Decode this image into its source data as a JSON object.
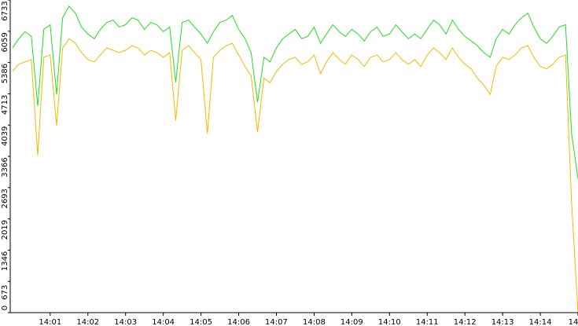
{
  "chart_data": {
    "type": "line",
    "x": [
      840,
      840.17,
      840.33,
      840.5,
      840.67,
      840.83,
      841,
      841.17,
      841.33,
      841.5,
      841.67,
      841.83,
      842,
      842.17,
      842.33,
      842.5,
      842.67,
      842.83,
      843,
      843.17,
      843.33,
      843.5,
      843.67,
      843.83,
      844,
      844.17,
      844.33,
      844.5,
      844.67,
      844.83,
      845,
      845.17,
      845.33,
      845.5,
      845.67,
      845.83,
      846,
      846.17,
      846.33,
      846.5,
      846.67,
      846.83,
      847,
      847.17,
      847.33,
      847.5,
      847.67,
      847.83,
      848,
      848.17,
      848.33,
      848.5,
      848.67,
      848.83,
      849,
      849.17,
      849.33,
      849.5,
      849.67,
      849.83,
      850,
      850.17,
      850.33,
      850.5,
      850.67,
      850.83,
      851,
      851.17,
      851.33,
      851.5,
      851.67,
      851.83,
      852,
      852.17,
      852.33,
      852.5,
      852.67,
      852.83,
      853,
      853.17,
      853.33,
      853.5,
      853.67,
      853.83,
      854,
      854.17,
      854.33,
      854.5,
      854.67,
      854.83,
      855
    ],
    "series": [
      {
        "color": "#22dd22",
        "values": [
          5700,
          5900,
          6050,
          5950,
          4450,
          6100,
          6200,
          4700,
          6350,
          6600,
          6450,
          6150,
          6000,
          5900,
          6100,
          6250,
          6300,
          6150,
          6200,
          6350,
          6300,
          6100,
          6250,
          6200,
          6050,
          6150,
          4960,
          6250,
          6300,
          6150,
          6000,
          5800,
          6050,
          6250,
          6300,
          6400,
          6100,
          5900,
          5600,
          4530,
          5500,
          5400,
          5700,
          5900,
          6000,
          6100,
          5900,
          5950,
          6150,
          5800,
          6000,
          6200,
          6050,
          5950,
          6100,
          6000,
          5850,
          6050,
          6150,
          5950,
          6000,
          6200,
          6050,
          5900,
          6000,
          5900,
          6100,
          6300,
          6200,
          6000,
          6300,
          6100,
          5950,
          5850,
          5750,
          5600,
          5500,
          5900,
          6100,
          6000,
          6200,
          6350,
          6450,
          6150,
          5900,
          5800,
          5950,
          6150,
          6200,
          3860,
          2880
        ]
      },
      {
        "color": "#f5b800",
        "values": [
          5200,
          5350,
          5400,
          5450,
          3380,
          5500,
          5550,
          4030,
          5700,
          5900,
          5800,
          5600,
          5450,
          5400,
          5550,
          5700,
          5650,
          5600,
          5650,
          5750,
          5700,
          5550,
          5650,
          5600,
          5500,
          5600,
          4140,
          5650,
          5750,
          5600,
          5450,
          3860,
          5500,
          5650,
          5750,
          5800,
          5550,
          5300,
          5100,
          3890,
          5050,
          4950,
          5200,
          5350,
          5450,
          5500,
          5350,
          5400,
          5550,
          5150,
          5400,
          5600,
          5450,
          5350,
          5550,
          5450,
          5300,
          5500,
          5550,
          5400,
          5450,
          5600,
          5450,
          5350,
          5450,
          5300,
          5550,
          5700,
          5600,
          5450,
          5700,
          5500,
          5350,
          5250,
          5050,
          4900,
          4700,
          5300,
          5500,
          5450,
          5550,
          5700,
          5750,
          5500,
          5300,
          5250,
          5350,
          5500,
          5550,
          2370,
          0
        ]
      }
    ],
    "xlim": [
      839.94,
      855
    ],
    "xticks": [
      {
        "value": 841,
        "label": "14:01"
      },
      {
        "value": 842,
        "label": "14:02"
      },
      {
        "value": 843,
        "label": "14:03"
      },
      {
        "value": 844,
        "label": "14:04"
      },
      {
        "value": 845,
        "label": "14:05"
      },
      {
        "value": 846,
        "label": "14:06"
      },
      {
        "value": 847,
        "label": "14:07"
      },
      {
        "value": 848,
        "label": "14:08"
      },
      {
        "value": 849,
        "label": "14:09"
      },
      {
        "value": 850,
        "label": "14:10"
      },
      {
        "value": 851,
        "label": "14:11"
      },
      {
        "value": 852,
        "label": "14:12"
      },
      {
        "value": 853,
        "label": "14:13"
      },
      {
        "value": 854,
        "label": "14:14"
      },
      {
        "value": 855,
        "label": "14"
      }
    ],
    "ylim": [
      0,
      6733
    ],
    "yticks": [
      0,
      673,
      1346,
      2019,
      2693,
      3366,
      4039,
      4713,
      5386,
      6059,
      6733
    ]
  }
}
